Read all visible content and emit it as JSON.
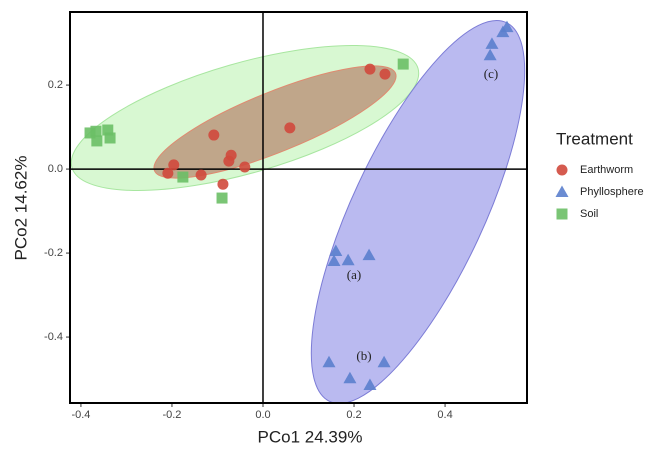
{
  "chart_data": {
    "type": "scatter",
    "xlabel": "PCo1 24.39%",
    "ylabel": "PCo2 14.62%",
    "legend_title": "Treatment",
    "legend": "right",
    "xlim": [
      -0.424,
      0.58
    ],
    "ylim": [
      -0.557,
      0.374
    ],
    "xticks": [
      -0.4,
      -0.2,
      {
        "value": 0,
        "label": "0.0"
      },
      0.2,
      0.4
    ],
    "yticks": [
      -0.4,
      -0.2,
      {
        "value": 0,
        "label": "0.0"
      },
      0.2
    ],
    "series": [
      {
        "name": "Earthworm",
        "color": "#d0493c",
        "marker": "circle",
        "x": [
          0.235,
          0.268,
          0.059,
          -0.108,
          -0.07,
          -0.075,
          -0.196,
          -0.209,
          -0.136,
          -0.04,
          -0.088
        ],
        "y": [
          0.238,
          0.226,
          0.098,
          0.081,
          0.033,
          0.019,
          0.01,
          -0.01,
          -0.014,
          0.005,
          -0.036
        ]
      },
      {
        "name": "Phyllosphere",
        "color": "#5b7fcd",
        "marker": "triangle",
        "x": [
          0.536,
          0.527,
          0.503,
          0.499,
          0.16,
          0.156,
          0.187,
          0.233,
          0.145,
          0.191,
          0.235,
          0.266
        ],
        "y": [
          0.338,
          0.326,
          0.298,
          0.271,
          -0.195,
          -0.219,
          -0.217,
          -0.205,
          -0.46,
          -0.498,
          -0.514,
          -0.46
        ]
      },
      {
        "name": "Soil",
        "color": "#6cbf66",
        "marker": "square",
        "x": [
          0.308,
          -0.38,
          -0.367,
          -0.341,
          -0.365,
          -0.336,
          -0.176,
          -0.09
        ],
        "y": [
          0.25,
          0.086,
          0.09,
          0.093,
          0.067,
          0.074,
          -0.019,
          -0.069
        ]
      }
    ],
    "annotations": [
      "(a)",
      "(b)",
      "(c)"
    ]
  }
}
